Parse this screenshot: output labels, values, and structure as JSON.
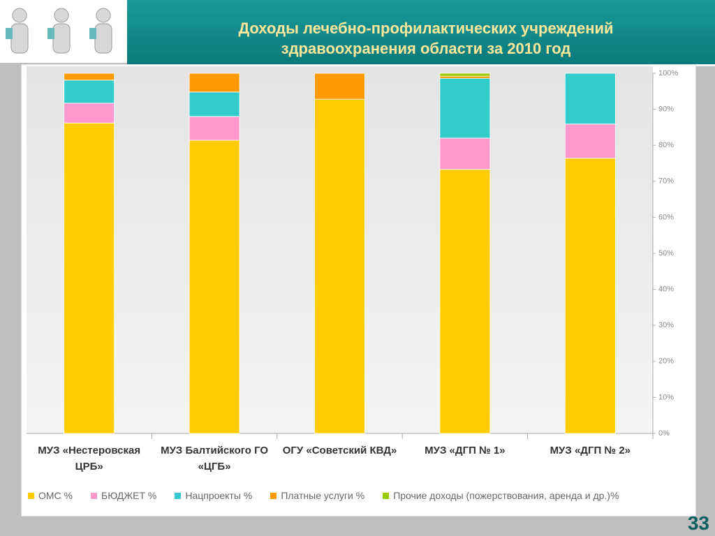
{
  "chart_data": {
    "type": "stacked_bar_percent",
    "title": "Доходы лечебно-профилактических учреждений здравоохранения области за 2010 год",
    "categories": [
      "МУЗ «Нестеровская ЦРБ»",
      "МУЗ Балтийского ГО «ЦГБ»",
      "ОГУ «Советский КВД»",
      "МУЗ «ДГП № 1»",
      "МУЗ «ДГП № 2»"
    ],
    "series": [
      {
        "name": "ОМС %",
        "color": "#ffcc00",
        "values": [
          86.2,
          81.4,
          92.8,
          73.3,
          76.4
        ]
      },
      {
        "name": "БЮДЖЕТ %",
        "color": "#ff99cc",
        "values": [
          5.5,
          6.6,
          0,
          8.7,
          9.5
        ]
      },
      {
        "name": "Нацпроекты %",
        "color": "#33cccc",
        "values": [
          6.4,
          6.8,
          0,
          16.6,
          14.1
        ]
      },
      {
        "name": "Платные услуги %",
        "color": "#ff9900",
        "values": [
          1.9,
          5.2,
          7.2,
          0.6,
          0
        ]
      },
      {
        "name": "Прочие доходы (пожерствования, аренда и др.)%",
        "color": "#99cc00",
        "values": [
          0,
          0,
          0,
          0.8,
          0
        ]
      }
    ],
    "ylim": [
      0,
      100
    ],
    "yticks": [
      {
        "value": 0,
        "label": "0%"
      },
      {
        "value": 10,
        "label": "10%"
      },
      {
        "value": 20,
        "label": "20%"
      },
      {
        "value": 30,
        "label": "30%"
      },
      {
        "value": 40,
        "label": "40%"
      },
      {
        "value": 50,
        "label": "50%"
      },
      {
        "value": 60,
        "label": "60%"
      },
      {
        "value": 70,
        "label": "70%"
      },
      {
        "value": 80,
        "label": "80%"
      },
      {
        "value": 90,
        "label": "90%"
      },
      {
        "value": 100,
        "label": "100%"
      }
    ],
    "legend": "bottom"
  },
  "page_number": "33"
}
